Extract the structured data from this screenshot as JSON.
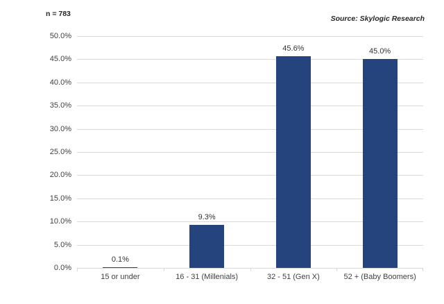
{
  "header": {
    "n_label": "n = 783",
    "source": "Source: Skylogic Research"
  },
  "chart_data": {
    "type": "bar",
    "title": "",
    "xlabel": "",
    "ylabel": "",
    "categories": [
      "15 or under",
      "16 - 31 (Millenials)",
      "32 - 51 (Gen X)",
      "52 + (Baby Boomers)"
    ],
    "values": [
      0.1,
      9.3,
      45.6,
      45.0
    ],
    "value_labels": [
      "0.1%",
      "9.3%",
      "45.6%",
      "45.0%"
    ],
    "ylim": [
      0,
      50
    ],
    "ytick_step": 5,
    "ytick_labels": [
      "0.0%",
      "5.0%",
      "10.0%",
      "15.0%",
      "20.0%",
      "25.0%",
      "30.0%",
      "35.0%",
      "40.0%",
      "45.0%",
      "50.0%"
    ],
    "grid": true,
    "legend": false,
    "bar_color": "#25437C",
    "gridline_color": "#D9D9D9",
    "axis_text_color": "#3F3F3F"
  }
}
